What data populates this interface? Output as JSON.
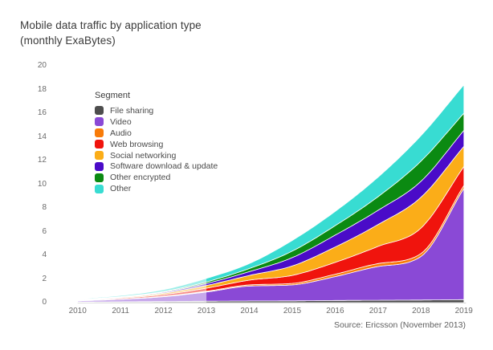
{
  "title": {
    "line1": "Mobile data traffic by application type",
    "line2": "(monthly ExaBytes)"
  },
  "source_note": "Source: Ericsson (November 2013)",
  "legend": {
    "title": "Segment",
    "items": [
      {
        "label": "File sharing",
        "color": "#4D4D4D"
      },
      {
        "label": "Video",
        "color": "#8A49D6"
      },
      {
        "label": "Audio",
        "color": "#F87B09"
      },
      {
        "label": "Web browsing",
        "color": "#F0140D"
      },
      {
        "label": "Social networking",
        "color": "#FBAD18"
      },
      {
        "label": "Software download & update",
        "color": "#4A0BC8"
      },
      {
        "label": "Other encrypted",
        "color": "#0B8A12"
      },
      {
        "label": "Other",
        "color": "#38DCD2"
      }
    ]
  },
  "chart_data": {
    "type": "area",
    "stacked": true,
    "title": "Mobile data traffic by application type (monthly ExaBytes)",
    "xlabel": "",
    "ylabel": "monthly ExaBytes",
    "x": [
      2010,
      2011,
      2012,
      2013,
      2014,
      2015,
      2016,
      2017,
      2018,
      2019
    ],
    "x_tick_labels": [
      "2010",
      "2011",
      "2012",
      "2013",
      "2014",
      "2015",
      "2016",
      "2017",
      "2018",
      "2019"
    ],
    "y_ticks": [
      0,
      2,
      4,
      6,
      8,
      10,
      12,
      14,
      16,
      18,
      20
    ],
    "ylim": [
      0,
      20
    ],
    "grid": false,
    "legend_position": "inside-top-left",
    "muted_region": {
      "from_x": 2010,
      "to_x": 2013,
      "style": "lighter (historical vs forecast)"
    },
    "series": [
      {
        "name": "File sharing",
        "color": "#4D4D4D",
        "values": [
          0.05,
          0.07,
          0.09,
          0.12,
          0.14,
          0.15,
          0.18,
          0.2,
          0.22,
          0.25
        ]
      },
      {
        "name": "Video",
        "color": "#8A49D6",
        "values": [
          0.1,
          0.21,
          0.41,
          0.78,
          1.26,
          1.35,
          2.02,
          2.85,
          3.68,
          9.4
        ]
      },
      {
        "name": "Audio",
        "color": "#F87B09",
        "values": [
          0.01,
          0.02,
          0.04,
          0.06,
          0.1,
          0.13,
          0.2,
          0.25,
          0.25,
          0.25
        ]
      },
      {
        "name": "Web browsing",
        "color": "#F0140D",
        "values": [
          0.04,
          0.08,
          0.14,
          0.26,
          0.4,
          0.67,
          1.0,
          1.45,
          2.15,
          1.6
        ]
      },
      {
        "name": "Social networking",
        "color": "#FBAD18",
        "values": [
          0.04,
          0.06,
          0.12,
          0.23,
          0.4,
          0.8,
          1.3,
          1.85,
          2.6,
          1.7
        ]
      },
      {
        "name": "Software download & update",
        "color": "#4A0BC8",
        "values": [
          0.02,
          0.04,
          0.08,
          0.17,
          0.32,
          0.7,
          1.0,
          1.2,
          1.35,
          1.35
        ]
      },
      {
        "name": "Other encrypted",
        "color": "#0B8A12",
        "values": [
          0.01,
          0.03,
          0.06,
          0.13,
          0.26,
          0.55,
          0.8,
          1.15,
          1.7,
          1.45
        ]
      },
      {
        "name": "Other",
        "color": "#38DCD2",
        "values": [
          0.05,
          0.09,
          0.16,
          0.3,
          0.42,
          0.9,
          1.2,
          1.65,
          2.15,
          2.4
        ]
      }
    ]
  }
}
